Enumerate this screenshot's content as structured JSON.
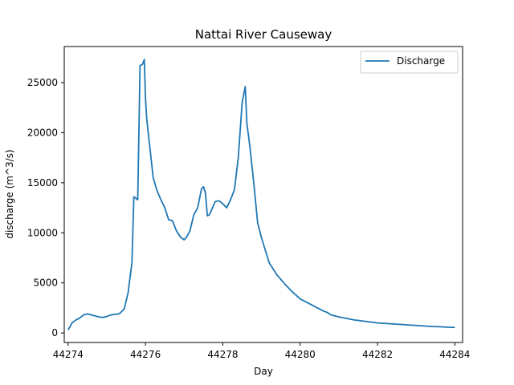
{
  "chart_data": {
    "type": "line",
    "title": "Nattai River Causeway",
    "xlabel": "Day",
    "ylabel": "discharge (m^3/s)",
    "xlim": [
      44273.9,
      44284.2
    ],
    "ylim": [
      -950,
      28600
    ],
    "xticks": [
      44274,
      44276,
      44278,
      44280,
      44282,
      44284
    ],
    "yticks": [
      0,
      5000,
      10000,
      15000,
      20000,
      25000
    ],
    "grid": false,
    "legend": {
      "position": "top-right"
    },
    "series": [
      {
        "name": "Discharge",
        "color": "#1f77b4",
        "x": [
          44274.0,
          44274.1,
          44274.2,
          44274.3,
          44274.4,
          44274.5,
          44274.6,
          44274.7,
          44274.8,
          44274.9,
          44275.0,
          44275.1,
          44275.2,
          44275.3,
          44275.35,
          44275.45,
          44275.55,
          44275.65,
          44275.7,
          44275.8,
          44275.86,
          44275.92,
          44275.97,
          44276.0,
          44276.03,
          44276.1,
          44276.2,
          44276.3,
          44276.4,
          44276.5,
          44276.6,
          44276.7,
          44276.8,
          44276.9,
          44277.0,
          44277.05,
          44277.15,
          44277.25,
          44277.35,
          44277.45,
          44277.5,
          44277.55,
          44277.6,
          44277.65,
          44277.7,
          44277.8,
          44277.9,
          44278.0,
          44278.1,
          44278.2,
          44278.3,
          44278.4,
          44278.5,
          44278.58,
          44278.62,
          44278.7,
          44278.8,
          44278.9,
          44279.0,
          44279.2,
          44279.4,
          44279.6,
          44279.8,
          44280.0,
          44280.2,
          44280.4,
          44280.6,
          44280.7,
          44280.8,
          44281.0,
          44281.2,
          44281.4,
          44281.6,
          44281.8,
          44282.0,
          44282.2,
          44282.4,
          44282.6,
          44282.8,
          44283.0,
          44283.2,
          44283.4,
          44283.6,
          44283.8,
          44284.0
        ],
        "values": [
          300,
          1000,
          1300,
          1500,
          1800,
          1900,
          1800,
          1700,
          1600,
          1550,
          1650,
          1800,
          1850,
          1900,
          2000,
          2400,
          4000,
          7000,
          13600,
          13300,
          26700,
          26800,
          27300,
          23500,
          21500,
          19000,
          15500,
          14200,
          13300,
          12500,
          11300,
          11200,
          10200,
          9600,
          9300,
          9500,
          10200,
          11800,
          12500,
          14400,
          14600,
          14000,
          11700,
          11800,
          12200,
          13100,
          13200,
          12900,
          12500,
          13300,
          14300,
          17500,
          23000,
          24600,
          21000,
          18600,
          15000,
          11000,
          9500,
          7000,
          5800,
          4900,
          4100,
          3400,
          3000,
          2600,
          2200,
          2050,
          1800,
          1600,
          1450,
          1300,
          1200,
          1100,
          1000,
          950,
          900,
          850,
          800,
          750,
          700,
          650,
          620,
          580,
          550
        ]
      }
    ]
  }
}
